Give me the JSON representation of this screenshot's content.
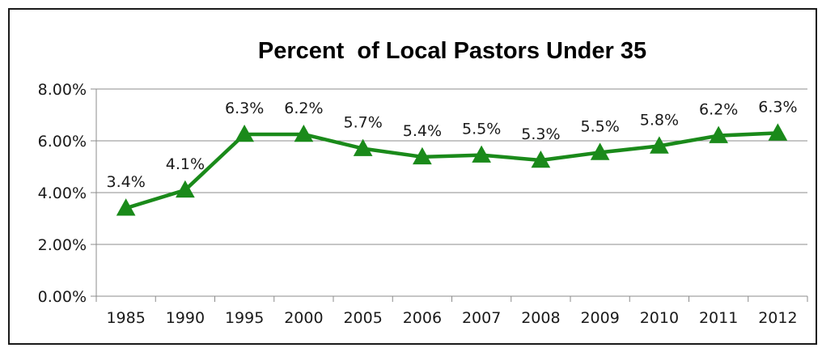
{
  "chart_data": {
    "type": "line",
    "title": "Percent  of Local Pastors Under 35",
    "categories": [
      "1985",
      "1990",
      "1995",
      "2000",
      "2005",
      "2006",
      "2007",
      "2008",
      "2009",
      "2010",
      "2011",
      "2012"
    ],
    "series": [
      {
        "values": [
          3.4,
          4.1,
          6.25,
          6.25,
          5.7,
          5.38,
          5.45,
          5.25,
          5.55,
          5.8,
          6.2,
          6.3
        ],
        "data_labels": [
          "3.4%",
          "4.1%",
          "6.3%",
          "6.2%",
          "5.7%",
          "5.4%",
          "5.5%",
          "5.3%",
          "5.5%",
          "5.8%",
          "6.2%",
          "6.3%"
        ],
        "color": "#1a8a1a",
        "marker": "triangle"
      }
    ],
    "y_ticks": [
      "0.00%",
      "2.00%",
      "4.00%",
      "6.00%",
      "8.00%"
    ],
    "ylim": [
      0,
      8
    ],
    "grid": true,
    "legend": "none"
  }
}
